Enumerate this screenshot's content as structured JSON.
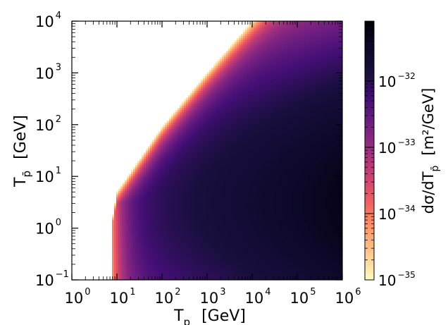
{
  "chart_data": {
    "type": "heatmap",
    "title": "",
    "x": {
      "label_main": "T",
      "label_sub": "p",
      "label_unit": "[GeV]",
      "scale": "log",
      "range": [
        1,
        1000000
      ],
      "ticks": [
        {
          "base": "10",
          "exp": "0"
        },
        {
          "base": "10",
          "exp": "1"
        },
        {
          "base": "10",
          "exp": "2"
        },
        {
          "base": "10",
          "exp": "3"
        },
        {
          "base": "10",
          "exp": "4"
        },
        {
          "base": "10",
          "exp": "5"
        },
        {
          "base": "10",
          "exp": "6"
        }
      ]
    },
    "y": {
      "label_main": "T",
      "label_sub": "p̄",
      "label_unit": "[GeV]",
      "scale": "log",
      "range": [
        0.1,
        10000
      ],
      "ticks": [
        {
          "base": "10",
          "exp": "−1"
        },
        {
          "base": "10",
          "exp": "0"
        },
        {
          "base": "10",
          "exp": "1"
        },
        {
          "base": "10",
          "exp": "2"
        },
        {
          "base": "10",
          "exp": "3"
        },
        {
          "base": "10",
          "exp": "4"
        }
      ]
    },
    "colorbar": {
      "label_main": "dσ/dT",
      "label_sub": "p̄",
      "label_unit": "[m²/GeV]",
      "scale": "log",
      "range": [
        1e-35,
        8e-32
      ],
      "colormap": "magma_r",
      "ticks": [
        {
          "base": "10",
          "exp": "−35",
          "value": -35
        },
        {
          "base": "10",
          "exp": "−34",
          "value": -34
        },
        {
          "base": "10",
          "exp": "−33",
          "value": -33
        },
        {
          "base": "10",
          "exp": "−32",
          "value": -32
        }
      ]
    },
    "kinematic_boundary": [
      {
        "Tp": 8,
        "Tpbar_min": 0.1,
        "Tpbar_max": 0.1
      },
      {
        "Tp": 8,
        "Tpbar_min": 0.1,
        "Tpbar_max": 1.6
      },
      {
        "Tp": 10,
        "Tpbar_min": 0.1,
        "Tpbar_max": 5
      },
      {
        "Tp": 100,
        "Tpbar_min": 0.1,
        "Tpbar_max": 90
      },
      {
        "Tp": 1000,
        "Tpbar_min": 0.1,
        "Tpbar_max": 1000
      },
      {
        "Tp": 10000,
        "Tpbar_min": 0.1,
        "Tpbar_max": 10000
      }
    ],
    "peak": {
      "Tp": 1000000,
      "Tpbar": 3,
      "value_log10": -31.3
    },
    "grid": false
  }
}
